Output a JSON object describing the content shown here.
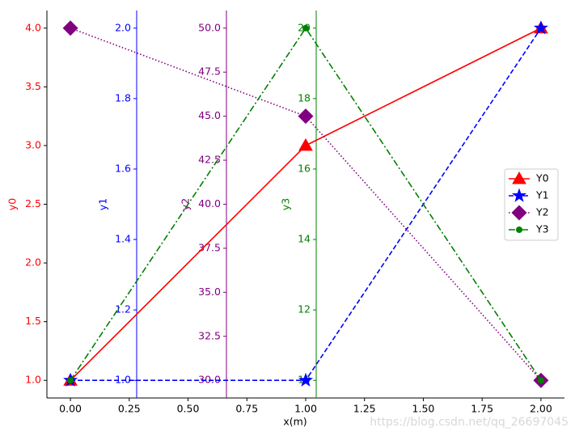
{
  "chart_data": {
    "type": "line",
    "xlabel": "x(m)",
    "x": [
      0,
      1,
      2
    ],
    "xlim": [
      -0.1,
      2.1
    ],
    "xticks": [
      {
        "value": 0,
        "label": "0.00"
      },
      {
        "value": 0.25,
        "label": "0.25"
      },
      {
        "value": 0.5,
        "label": "0.50"
      },
      {
        "value": 0.75,
        "label": "0.75"
      },
      {
        "value": 1,
        "label": "1.00"
      },
      {
        "value": 1.25,
        "label": "1.25"
      },
      {
        "value": 1.5,
        "label": "1.50"
      },
      {
        "value": 1.75,
        "label": "1.75"
      },
      {
        "value": 2,
        "label": "2.00"
      }
    ],
    "axes": [
      {
        "label": "y0",
        "color": "#ff0000",
        "ylim": [
          0.85,
          4.15
        ],
        "yticks": [
          {
            "value": 1,
            "label": "1.0"
          },
          1.5,
          {
            "value": 2,
            "label": "2.0"
          },
          2.5,
          {
            "value": 3,
            "label": "3.0"
          },
          3.5,
          {
            "value": 4,
            "label": "4.0"
          }
        ]
      },
      {
        "label": "y1",
        "color": "#0000ff",
        "ylim": [
          0.95,
          2.05
        ],
        "yticks": [
          {
            "value": 1,
            "label": "1.0"
          },
          1.2,
          1.4,
          1.6,
          1.8,
          {
            "value": 2,
            "label": "2.0"
          }
        ]
      },
      {
        "label": "y2",
        "color": "#800080",
        "ylim": [
          29,
          51
        ],
        "yticks": [
          {
            "value": 30,
            "label": "30.0"
          },
          32.5,
          {
            "value": 35,
            "label": "35.0"
          },
          37.5,
          {
            "value": 40,
            "label": "40.0"
          },
          42.5,
          {
            "value": 45,
            "label": "45.0"
          },
          47.5,
          {
            "value": 50,
            "label": "50.0"
          }
        ]
      },
      {
        "label": "y3",
        "color": "#008000",
        "ylim": [
          9.5,
          20.5
        ],
        "yticks": [
          10,
          12,
          14,
          16,
          18,
          20
        ]
      }
    ],
    "series": [
      {
        "name": "Y0",
        "color": "#ff0000",
        "axis": 0,
        "linestyle": "solid",
        "marker": "triangle",
        "values": [
          1,
          3,
          4
        ]
      },
      {
        "name": "Y1",
        "color": "#0000ff",
        "axis": 1,
        "linestyle": "dashed",
        "marker": "star",
        "values": [
          1,
          1,
          2
        ]
      },
      {
        "name": "Y2",
        "color": "#800080",
        "axis": 2,
        "linestyle": "dotted",
        "marker": "diamond",
        "values": [
          50,
          45,
          30
        ]
      },
      {
        "name": "Y3",
        "color": "#008000",
        "axis": 3,
        "linestyle": "dashdot",
        "marker": "circle",
        "values": [
          10,
          20,
          10
        ]
      }
    ],
    "legend": "center right",
    "watermark": "https://blog.csdn.net/qq_26697045"
  }
}
